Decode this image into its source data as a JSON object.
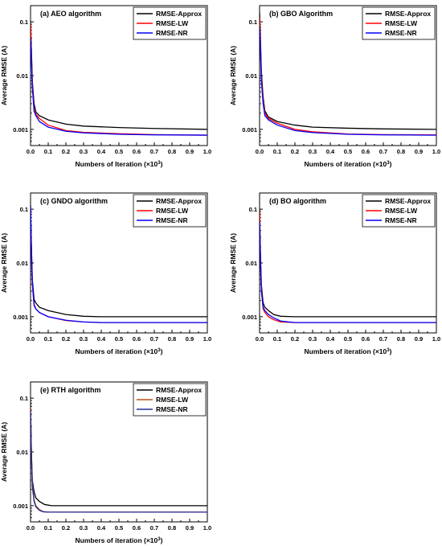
{
  "chart_data": [
    {
      "type": "line",
      "panel": "(a)",
      "title": "AEO algorithm",
      "xlabel": "Numbers of Iteration (×10",
      "xlabel_sup": "3",
      "xlabel_end": ")",
      "ylabel": "Average RMSE (A)",
      "xlim": [
        0,
        1.0
      ],
      "ylim": [
        0.0005,
        0.2
      ],
      "yscale": "log",
      "x_ticks": [
        "0.0",
        "0.1",
        "0.2",
        "0.3",
        "0.4",
        "0.5",
        "0.6",
        "0.7",
        "0.8",
        "0.9",
        "1.0"
      ],
      "y_ticks": [
        {
          "value": 0.1,
          "label": "0.1"
        },
        {
          "value": 0.01,
          "label": "0.01"
        },
        {
          "value": 0.001,
          "label": "0.001"
        }
      ],
      "legend_position": "top-right",
      "series": [
        {
          "name": "RMSE-Approx",
          "color": "#000000",
          "x": [
            0,
            0.005,
            0.01,
            0.02,
            0.03,
            0.05,
            0.1,
            0.2,
            0.3,
            0.5,
            0.7,
            1.0
          ],
          "y": [
            0.1,
            0.03,
            0.008,
            0.003,
            0.0021,
            0.0018,
            0.0015,
            0.00125,
            0.00115,
            0.00108,
            0.00104,
            0.001
          ]
        },
        {
          "name": "RMSE-LW",
          "color": "#ff0000",
          "x": [
            0,
            0.005,
            0.01,
            0.02,
            0.03,
            0.05,
            0.1,
            0.2,
            0.3,
            0.5,
            0.7,
            1.0
          ],
          "y": [
            0.09,
            0.025,
            0.007,
            0.0025,
            0.0019,
            0.0016,
            0.0012,
            0.00095,
            0.00088,
            0.00083,
            0.0008,
            0.00078
          ]
        },
        {
          "name": "RMSE-NR",
          "color": "#0000ff",
          "x": [
            0,
            0.005,
            0.01,
            0.02,
            0.03,
            0.05,
            0.1,
            0.2,
            0.3,
            0.5,
            0.7,
            1.0
          ],
          "y": [
            0.05,
            0.02,
            0.006,
            0.0022,
            0.0018,
            0.0014,
            0.0011,
            0.00092,
            0.00086,
            0.00081,
            0.00079,
            0.00078
          ]
        }
      ]
    },
    {
      "type": "line",
      "panel": "(b)",
      "title": "GBO Algorithm",
      "xlabel": "Numbers of iteration (×10",
      "xlabel_sup": "3",
      "xlabel_end": ")",
      "ylabel": "Average RMSE (A)",
      "xlim": [
        0,
        1.0
      ],
      "ylim": [
        0.0005,
        0.2
      ],
      "yscale": "log",
      "x_ticks": [
        "0.0",
        "0.1",
        "0.2",
        "0.3",
        "0.4",
        "0.5",
        "0.6",
        "0.7",
        "0.8",
        "0.9",
        "1.0"
      ],
      "y_ticks": [
        {
          "value": 0.1,
          "label": "0.1"
        },
        {
          "value": 0.01,
          "label": "0.01"
        },
        {
          "value": 0.001,
          "label": "0.001"
        }
      ],
      "legend_position": "top-right",
      "series": [
        {
          "name": "RMSE-Approx",
          "color": "#000000",
          "x": [
            0,
            0.005,
            0.01,
            0.02,
            0.03,
            0.05,
            0.1,
            0.2,
            0.3,
            0.5,
            0.7,
            1.0
          ],
          "y": [
            0.15,
            0.05,
            0.012,
            0.004,
            0.0022,
            0.0017,
            0.0014,
            0.0012,
            0.0011,
            0.00105,
            0.00102,
            0.001
          ]
        },
        {
          "name": "RMSE-LW",
          "color": "#ff0000",
          "x": [
            0,
            0.005,
            0.01,
            0.02,
            0.03,
            0.05,
            0.1,
            0.2,
            0.3,
            0.5,
            0.7,
            1.0
          ],
          "y": [
            0.12,
            0.04,
            0.01,
            0.0035,
            0.002,
            0.0016,
            0.0013,
            0.001,
            0.0009,
            0.00082,
            0.0008,
            0.00079
          ]
        },
        {
          "name": "RMSE-NR",
          "color": "#0000ff",
          "x": [
            0,
            0.005,
            0.01,
            0.02,
            0.03,
            0.05,
            0.1,
            0.2,
            0.3,
            0.5,
            0.7,
            1.0
          ],
          "y": [
            0.08,
            0.03,
            0.008,
            0.003,
            0.0018,
            0.0015,
            0.0012,
            0.00095,
            0.00087,
            0.00081,
            0.00079,
            0.00078
          ]
        }
      ]
    },
    {
      "type": "line",
      "panel": "(c)",
      "title": "GNDO algorithm",
      "xlabel": "Numbers of iteration (×10",
      "xlabel_sup": "3",
      "xlabel_end": ")",
      "ylabel": "Average RMSE (A)",
      "xlim": [
        0,
        1.0
      ],
      "ylim": [
        0.0005,
        0.2
      ],
      "yscale": "log",
      "x_ticks": [
        "0.0",
        "0.1",
        "0.2",
        "0.3",
        "0.4",
        "0.5",
        "0.6",
        "0.7",
        "0.8",
        "0.9",
        "1.0"
      ],
      "y_ticks": [
        {
          "value": 0.1,
          "label": "0.1"
        },
        {
          "value": 0.01,
          "label": "0.01"
        },
        {
          "value": 0.001,
          "label": "0.001"
        }
      ],
      "legend_position": "top-right",
      "series": [
        {
          "name": "RMSE-Approx",
          "color": "#000000",
          "x": [
            0,
            0.005,
            0.01,
            0.02,
            0.03,
            0.05,
            0.1,
            0.2,
            0.3,
            0.4,
            0.6,
            1.0
          ],
          "y": [
            0.12,
            0.02,
            0.005,
            0.0021,
            0.0018,
            0.0015,
            0.0013,
            0.0011,
            0.00102,
            0.001,
            0.001,
            0.001
          ]
        },
        {
          "name": "RMSE-LW",
          "color": "#ff0000",
          "x": [
            0,
            0.005,
            0.01,
            0.02,
            0.03,
            0.05,
            0.1,
            0.2,
            0.3,
            0.4,
            0.6,
            1.0
          ],
          "y": [
            0.1,
            0.015,
            0.004,
            0.0016,
            0.0014,
            0.0012,
            0.001,
            0.00085,
            0.0008,
            0.00078,
            0.00078,
            0.00078
          ]
        },
        {
          "name": "RMSE-NR",
          "color": "#0000ff",
          "x": [
            0,
            0.005,
            0.01,
            0.02,
            0.03,
            0.05,
            0.1,
            0.2,
            0.3,
            0.4,
            0.6,
            1.0
          ],
          "y": [
            0.11,
            0.018,
            0.0045,
            0.0017,
            0.0014,
            0.0012,
            0.001,
            0.00086,
            0.0008,
            0.00078,
            0.00078,
            0.00078
          ]
        }
      ]
    },
    {
      "type": "line",
      "panel": "(d)",
      "title": "BO algorithm",
      "xlabel": "Numbers of iteration (×10",
      "xlabel_sup": "3",
      "xlabel_end": ")",
      "ylabel": "Average RMSE (A)",
      "xlim": [
        0,
        1.0
      ],
      "ylim": [
        0.0005,
        0.2
      ],
      "yscale": "log",
      "x_ticks": [
        "0.0",
        "0.1",
        "0.2",
        "0.3",
        "0.4",
        "0.5",
        "0.6",
        "0.7",
        "0.8",
        "0.9",
        "1.0"
      ],
      "y_ticks": [
        {
          "value": 0.1,
          "label": "0.1"
        },
        {
          "value": 0.01,
          "label": "0.01"
        },
        {
          "value": 0.001,
          "label": "0.001"
        }
      ],
      "legend_position": "top-right",
      "series": [
        {
          "name": "RMSE-Approx",
          "color": "#000000",
          "x": [
            0,
            0.005,
            0.01,
            0.02,
            0.03,
            0.05,
            0.08,
            0.12,
            0.2,
            0.4,
            1.0
          ],
          "y": [
            0.1,
            0.015,
            0.004,
            0.0018,
            0.0015,
            0.0013,
            0.0011,
            0.00102,
            0.001,
            0.001,
            0.001
          ]
        },
        {
          "name": "RMSE-LW",
          "color": "#ff0000",
          "x": [
            0,
            0.005,
            0.01,
            0.02,
            0.03,
            0.05,
            0.08,
            0.12,
            0.2,
            0.4,
            1.0
          ],
          "y": [
            0.09,
            0.012,
            0.0035,
            0.0014,
            0.0012,
            0.001,
            0.00088,
            0.0008,
            0.00078,
            0.00078,
            0.00078
          ]
        },
        {
          "name": "RMSE-NR",
          "color": "#0000ff",
          "x": [
            0,
            0.005,
            0.01,
            0.02,
            0.03,
            0.05,
            0.08,
            0.12,
            0.2,
            0.4,
            1.0
          ],
          "y": [
            0.06,
            0.01,
            0.003,
            0.0015,
            0.0013,
            0.0011,
            0.00095,
            0.00083,
            0.00078,
            0.00078,
            0.00078
          ]
        }
      ]
    },
    {
      "type": "line",
      "panel": "(e)",
      "title": "RTH algorithm",
      "xlabel": "Numbers of iteration (×10",
      "xlabel_sup": "3",
      "xlabel_end": ")",
      "ylabel": "Average RMSE (A)",
      "xlim": [
        0,
        1.0
      ],
      "ylim": [
        0.0005,
        0.2
      ],
      "yscale": "log",
      "x_ticks": [
        "0.0",
        "0.1",
        "0.2",
        "0.3",
        "0.4",
        "0.5",
        "0.6",
        "0.7",
        "0.8",
        "0.9",
        "1.0"
      ],
      "y_ticks": [
        {
          "value": 0.1,
          "label": "0.1"
        },
        {
          "value": 0.01,
          "label": "0.01"
        },
        {
          "value": 0.001,
          "label": "0.001"
        }
      ],
      "legend_position": "top-right",
      "series": [
        {
          "name": "RMSE-Approx",
          "color": "#000000",
          "x": [
            0,
            0.005,
            0.01,
            0.02,
            0.03,
            0.05,
            0.08,
            0.12,
            0.2,
            1.0
          ],
          "y": [
            0.08,
            0.01,
            0.003,
            0.0018,
            0.0014,
            0.0012,
            0.00105,
            0.001,
            0.001,
            0.001
          ]
        },
        {
          "name": "RMSE-LW",
          "color": "#b8501a",
          "x": [
            0,
            0.005,
            0.01,
            0.02,
            0.03,
            0.05,
            0.07,
            0.1,
            0.2,
            1.0
          ],
          "y": [
            0.07,
            0.009,
            0.0025,
            0.0013,
            0.001,
            0.00085,
            0.00078,
            0.00076,
            0.00076,
            0.00076
          ]
        },
        {
          "name": "RMSE-NR",
          "color": "#2a2aa0",
          "x": [
            0,
            0.005,
            0.01,
            0.02,
            0.03,
            0.05,
            0.07,
            0.1,
            0.2,
            1.0
          ],
          "y": [
            0.06,
            0.008,
            0.0023,
            0.0012,
            0.00095,
            0.00082,
            0.00077,
            0.00076,
            0.00076,
            0.00076
          ]
        }
      ]
    }
  ]
}
